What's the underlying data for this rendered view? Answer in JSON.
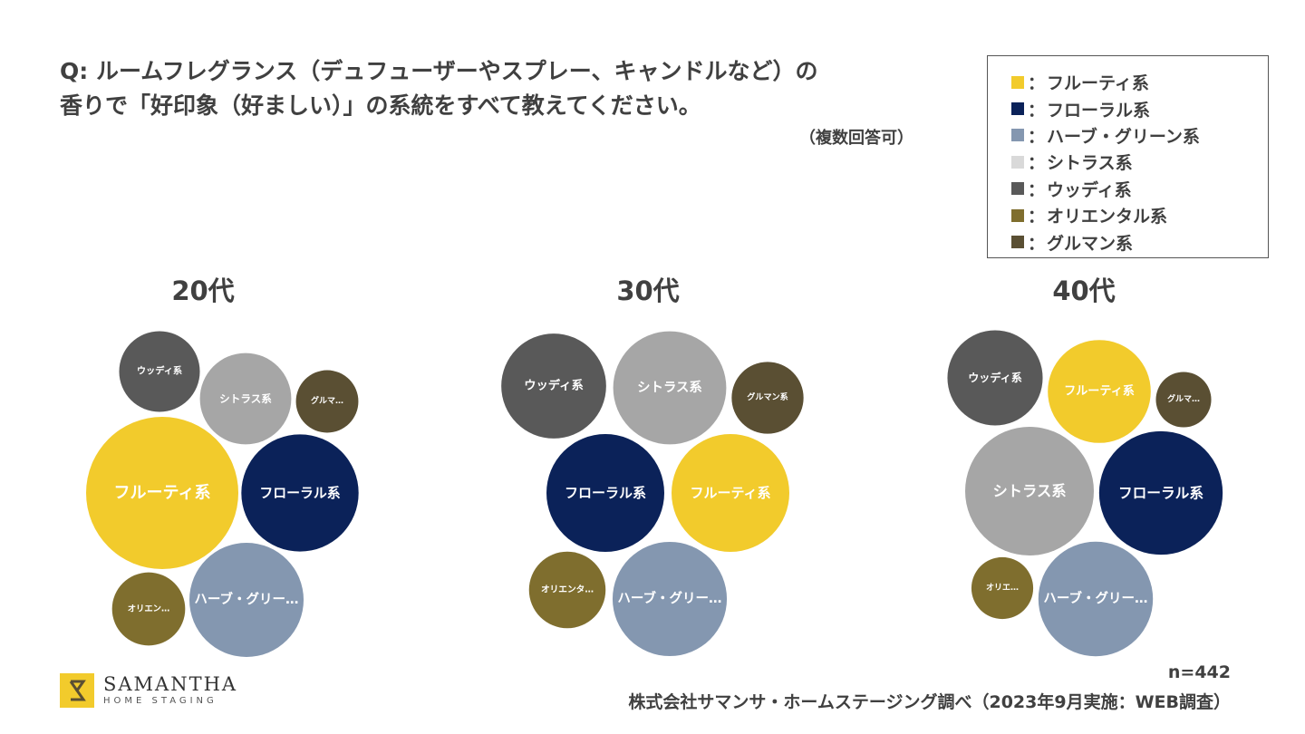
{
  "question": {
    "line1": "Q: ルームフレグランス（デュフューザーやスプレー、キャンドルなど）の",
    "line2": "香りで「好印象（好ましい）」の系統をすべて教えてください。",
    "note": "（複数回答可）"
  },
  "legend": {
    "separator": "：",
    "items": [
      {
        "key": "fruity",
        "label": "フルーティ系",
        "color": "#f2cb2c"
      },
      {
        "key": "floral",
        "label": "フローラル系",
        "color": "#0b2259"
      },
      {
        "key": "herbal",
        "label": "ハーブ・グリーン系",
        "color": "#8497b0"
      },
      {
        "key": "citrus",
        "label": "シトラス系",
        "color": "#d9d9d9"
      },
      {
        "key": "woody",
        "label": "ウッディ系",
        "color": "#595959"
      },
      {
        "key": "oriental",
        "label": "オリエンタル系",
        "color": "#7f6e2e"
      },
      {
        "key": "gourmand",
        "label": "グルマン系",
        "color": "#5a4f33"
      }
    ]
  },
  "chart_data": [
    {
      "type": "bubble",
      "title": "20代",
      "bubbles": [
        {
          "key": "woody",
          "label": "ウッディ系",
          "color": "#595959",
          "relative_size": 0.53
        },
        {
          "key": "citrus",
          "label": "シトラス系",
          "color": "#a6a6a6",
          "relative_size": 0.6
        },
        {
          "key": "gourmand",
          "label": "グルマ…",
          "color": "#5a4f33",
          "relative_size": 0.41
        },
        {
          "key": "fruity",
          "label": "フルーティ系",
          "color": "#f2cb2c",
          "relative_size": 1.0
        },
        {
          "key": "floral",
          "label": "フローラル系",
          "color": "#0b2259",
          "relative_size": 0.77
        },
        {
          "key": "oriental",
          "label": "オリエン…",
          "color": "#7f6e2e",
          "relative_size": 0.48
        },
        {
          "key": "herbal",
          "label": "ハーブ・グリー…",
          "color": "#8497b0",
          "relative_size": 0.75
        }
      ]
    },
    {
      "type": "bubble",
      "title": "30代",
      "bubbles": [
        {
          "key": "woody",
          "label": "ウッディ系",
          "color": "#595959",
          "relative_size": 0.89
        },
        {
          "key": "citrus",
          "label": "シトラス系",
          "color": "#a6a6a6",
          "relative_size": 0.96
        },
        {
          "key": "gourmand",
          "label": "グルマン系",
          "color": "#5a4f33",
          "relative_size": 0.61
        },
        {
          "key": "floral",
          "label": "フローラル系",
          "color": "#0b2259",
          "relative_size": 1.0
        },
        {
          "key": "fruity",
          "label": "フルーティ系",
          "color": "#f2cb2c",
          "relative_size": 1.0
        },
        {
          "key": "oriental",
          "label": "オリエンタ…",
          "color": "#7f6e2e",
          "relative_size": 0.65
        },
        {
          "key": "herbal",
          "label": "ハーブ・グリー…",
          "color": "#8497b0",
          "relative_size": 0.97
        }
      ]
    },
    {
      "type": "bubble",
      "title": "40代",
      "bubbles": [
        {
          "key": "woody",
          "label": "ウッディ系",
          "color": "#595959",
          "relative_size": 0.74
        },
        {
          "key": "fruity",
          "label": "フルーティ系",
          "color": "#f2cb2c",
          "relative_size": 0.8
        },
        {
          "key": "gourmand",
          "label": "グルマ…",
          "color": "#5a4f33",
          "relative_size": 0.43
        },
        {
          "key": "citrus",
          "label": "シトラス系",
          "color": "#a6a6a6",
          "relative_size": 1.0
        },
        {
          "key": "floral",
          "label": "フローラル系",
          "color": "#0b2259",
          "relative_size": 0.96
        },
        {
          "key": "oriental",
          "label": "オリエ…",
          "color": "#7f6e2e",
          "relative_size": 0.48
        },
        {
          "key": "herbal",
          "label": "ハーブ・グリー…",
          "color": "#8497b0",
          "relative_size": 0.89
        }
      ]
    }
  ],
  "footer": {
    "n": "n=442",
    "source": "株式会社サマンサ・ホームステージング調べ（2023年9月実施：WEB調査）"
  },
  "logo": {
    "name": "SAMANTHA",
    "sub": "HOME STAGING"
  }
}
